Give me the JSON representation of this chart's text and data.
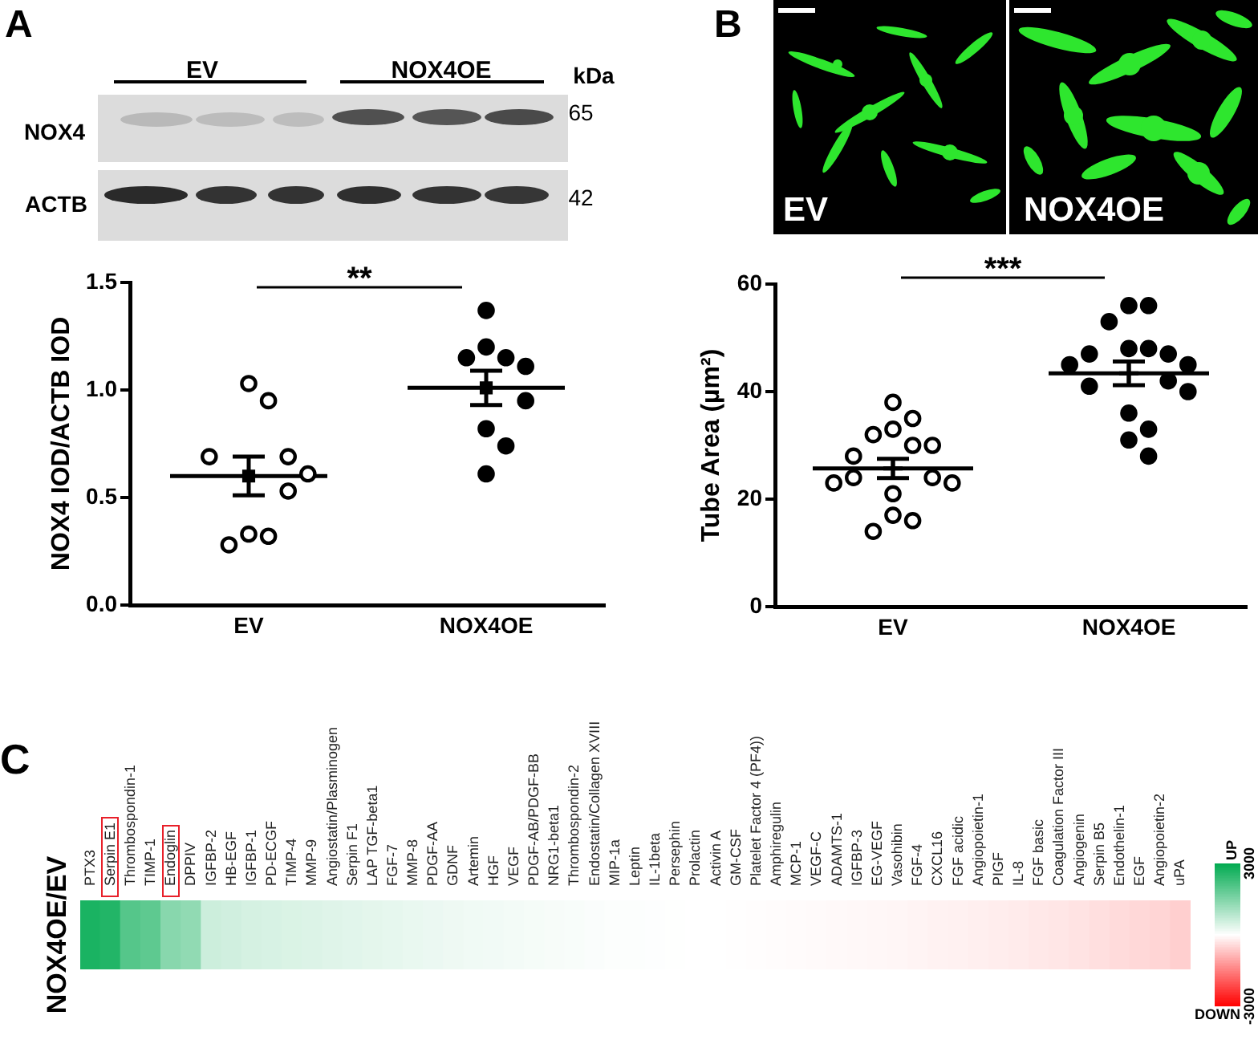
{
  "chart_data": [
    {
      "type": "scatter",
      "title": "A",
      "categories": [
        "EV",
        "NOX4OE"
      ],
      "ylabel": "NOX4 IOD/ACTB IOD",
      "ylim": [
        0,
        1.5
      ],
      "yticks": [
        {
          "value": 0,
          "label": "0.0"
        },
        {
          "value": 0.5,
          "label": "0.5"
        },
        {
          "value": 1,
          "label": "1.0"
        },
        {
          "value": 1.5,
          "label": "1.5"
        }
      ],
      "series": [
        {
          "color": "#000000",
          "marker": "circle",
          "x": [
            "EV",
            "EV",
            "EV",
            "EV",
            "EV",
            "EV",
            "EV",
            "EV",
            "EV"
          ],
          "values": [
            1.03,
            0.95,
            0.69,
            0.69,
            0.61,
            0.53,
            0.33,
            0.32,
            0.28
          ]
        },
        {
          "color": "#000000",
          "marker": "circle",
          "x": [
            "NOX4OE",
            "NOX4OE",
            "NOX4OE",
            "NOX4OE",
            "NOX4OE",
            "NOX4OE",
            "NOX4OE",
            "NOX4OE",
            "NOX4OE"
          ],
          "values": [
            1.37,
            1.2,
            1.15,
            1.15,
            1.11,
            0.95,
            0.82,
            0.74,
            0.61
          ]
        },
        {
          "color": "#000000",
          "marker": "square",
          "x": [
            "EV",
            "NOX4OE"
          ],
          "values": [
            0.6,
            1.01
          ],
          "errors": [
            0.09,
            0.08
          ]
        }
      ],
      "ref_lines": [
        {
          "axis": "y",
          "value": 0.6
        },
        {
          "axis": "y",
          "value": 1.01
        }
      ],
      "annotations": [
        "**",
        "EV",
        "NOX4OE",
        "kDa",
        "NOX4",
        "ACTB",
        "65",
        "42"
      ]
    },
    {
      "type": "scatter",
      "title": "B",
      "categories": [
        "EV",
        "NOX4OE"
      ],
      "ylabel": "Tube Area (µm²)",
      "ylim": [
        0,
        60
      ],
      "yticks": [
        0,
        20,
        40,
        60
      ],
      "series": [
        {
          "color": "#000000",
          "marker": "circle",
          "x": [
            "EV",
            "EV",
            "EV",
            "EV",
            "EV",
            "EV",
            "EV",
            "EV",
            "EV",
            "EV",
            "EV",
            "EV",
            "EV",
            "EV",
            "EV"
          ],
          "values": [
            38,
            35,
            33,
            32,
            30,
            30,
            28,
            24,
            23,
            23,
            24,
            21,
            17,
            16,
            14
          ]
        },
        {
          "color": "#000000",
          "marker": "circle",
          "x": [
            "NOX4OE",
            "NOX4OE",
            "NOX4OE",
            "NOX4OE",
            "NOX4OE",
            "NOX4OE",
            "NOX4OE",
            "NOX4OE",
            "NOX4OE",
            "NOX4OE",
            "NOX4OE",
            "NOX4OE",
            "NOX4OE",
            "NOX4OE",
            "NOX4OE",
            "NOX4OE"
          ],
          "values": [
            56,
            56,
            53,
            48,
            47,
            47,
            48,
            45,
            45,
            42,
            41,
            40,
            36,
            33,
            31,
            28
          ]
        },
        {
          "color": "#000000",
          "marker": "cross",
          "x": [
            "EV",
            "NOX4OE"
          ],
          "values": [
            25.7,
            43.4
          ],
          "errors": [
            1.8,
            2.2
          ]
        }
      ],
      "ref_lines": [
        {
          "axis": "y",
          "value": 25.7
        },
        {
          "axis": "y",
          "value": 43.4
        }
      ],
      "annotations": [
        "***",
        "EV",
        "NOX4OE"
      ]
    },
    {
      "type": "heatmap",
      "title": "C",
      "y_categories": [
        "NOX4OE/EV"
      ],
      "categories": [
        "PTX3",
        "Serpin E1",
        "Thrombospondin-1",
        "TIMP-1",
        "Endoglin",
        "DPPIV",
        "IGFBP-2",
        "HB-EGF",
        "IGFBP-1",
        "PD-ECGF",
        "TIMP-4",
        "MMP-9",
        "Angiostatin/Plasminogen",
        "Serpin F1",
        "LAP TGF-beta1",
        "FGF-7",
        "MMP-8",
        "PDGF-AA",
        "GDNF",
        "Artemin",
        "HGF",
        "VEGF",
        "PDGF-AB/PDGF-BB",
        "NRG1-beta1",
        "Thrombospondin-2",
        "Endostatin/Collagen XVIII",
        "MIP-1a",
        "Leptin",
        "IL-1beta",
        "Persephin",
        "Prolactin",
        "Activin A",
        "GM-CSF",
        "Platelet Factor 4 (PF4))",
        "Amphiregulin",
        "MCP-1",
        "VEGF-C",
        "ADAMTS-1",
        "IGFBP-3",
        "EG-VEGF",
        "Vasohibin",
        "FGF-4",
        "CXCL16",
        "FGF acidic",
        "Angiopoietin-1",
        "PIGF",
        "IL-8",
        "FGF basic",
        "Coagulation Factor III",
        "Angiogenin",
        "Serpin B5",
        "Endothelin-1",
        "EGF",
        "Angiopoietin-2",
        "uPA"
      ],
      "cells": [
        [
          2700,
          2600,
          2000,
          1900,
          1400,
          1300,
          600,
          550,
          500,
          470,
          440,
          410,
          380,
          350,
          320,
          290,
          260,
          230,
          200,
          180,
          160,
          140,
          120,
          100,
          80,
          60,
          40,
          30,
          20,
          10,
          0,
          0,
          -10,
          -20,
          -30,
          -50,
          -60,
          -70,
          -80,
          -90,
          -110,
          -130,
          -150,
          -170,
          -190,
          -210,
          -230,
          -270,
          -300,
          -330,
          -380,
          -420,
          -460,
          -500,
          -560
        ]
      ],
      "clim": [
        -3000,
        3000
      ],
      "cticks": [
        3000,
        -3000
      ],
      "annotations": [
        "UP",
        "DOWN"
      ]
    }
  ]
}
